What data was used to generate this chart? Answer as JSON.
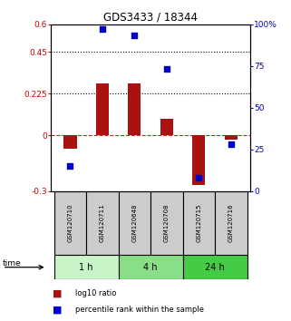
{
  "title": "GDS3433 / 18344",
  "samples": [
    "GSM120710",
    "GSM120711",
    "GSM120648",
    "GSM120708",
    "GSM120715",
    "GSM120716"
  ],
  "log10_ratio": [
    -0.07,
    0.28,
    0.28,
    0.09,
    -0.27,
    -0.022
  ],
  "percentile_rank": [
    15,
    97,
    93,
    73,
    8,
    28
  ],
  "groups": [
    {
      "label": "1 h",
      "indices": [
        0,
        1
      ],
      "color": "#c8f5c8"
    },
    {
      "label": "4 h",
      "indices": [
        2,
        3
      ],
      "color": "#88df88"
    },
    {
      "label": "24 h",
      "indices": [
        4,
        5
      ],
      "color": "#44cc44"
    }
  ],
  "ylim_left": [
    -0.3,
    0.6
  ],
  "ylim_right": [
    0,
    100
  ],
  "yticks_left": [
    -0.3,
    0.0,
    0.225,
    0.45,
    0.6
  ],
  "yticks_right": [
    0,
    25,
    50,
    75,
    100
  ],
  "ytick_labels_left": [
    "-0.3",
    "0",
    "0.225",
    "0.45",
    "0.6"
  ],
  "ytick_labels_right": [
    "0",
    "25",
    "50",
    "75",
    "100%"
  ],
  "hlines_dotted": [
    0.225,
    0.45
  ],
  "hline_dashed": 0.0,
  "bar_color": "#aa1111",
  "dot_color": "#0000cc",
  "bar_width": 0.4,
  "dot_size": 18,
  "left_tick_color": "#cc0000",
  "right_tick_color": "#0000cc",
  "time_label": "time",
  "legend_bar_label": "log10 ratio",
  "legend_dot_label": "percentile rank within the sample",
  "sample_box_color": "#cccccc"
}
